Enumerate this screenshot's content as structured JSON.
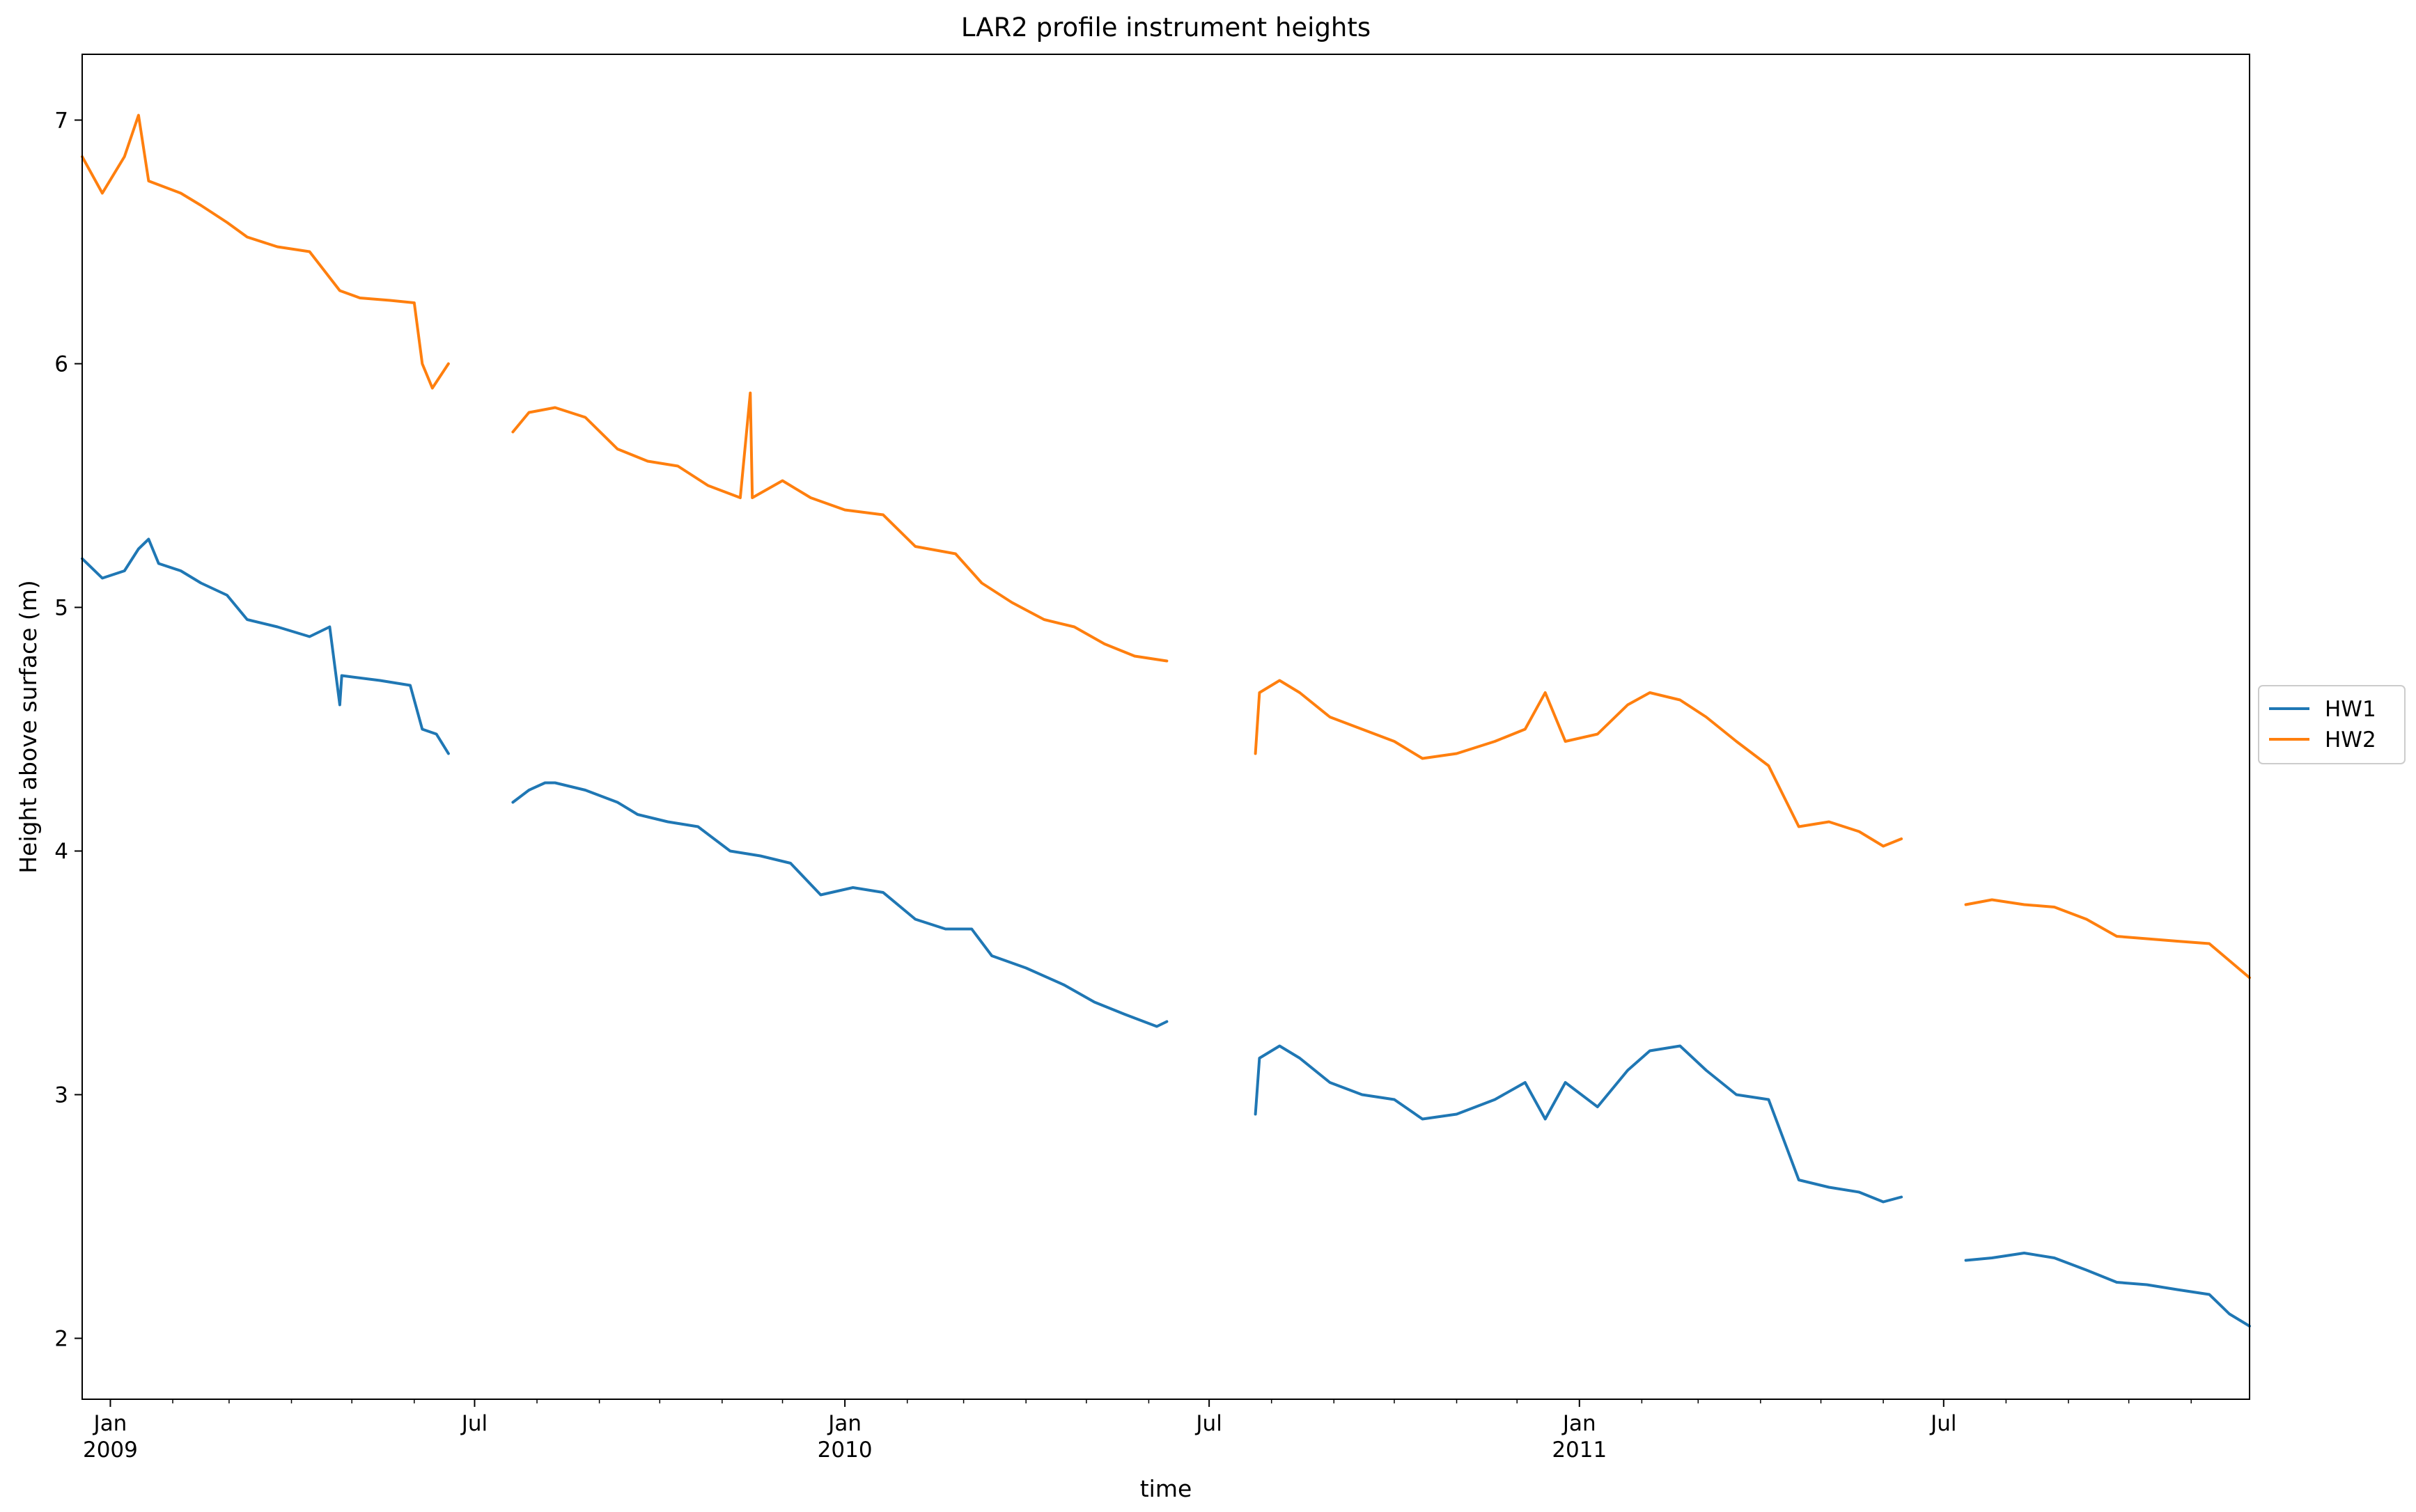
{
  "chart_data": {
    "type": "line",
    "title": "LAR2 profile instrument heights",
    "xlabel": "time",
    "ylabel": "Height above surface (m)",
    "xlim": [
      "2008-12-18",
      "2011-11-30"
    ],
    "ylim": [
      1.75,
      7.27
    ],
    "y_ticks": [
      2,
      3,
      4,
      5,
      6,
      7
    ],
    "x_ticks": [
      {
        "date": "2009-01-01",
        "label": "Jan",
        "sublabel": "2009"
      },
      {
        "date": "2009-07-01",
        "label": "Jul",
        "sublabel": ""
      },
      {
        "date": "2010-01-01",
        "label": "Jan",
        "sublabel": "2010"
      },
      {
        "date": "2010-07-01",
        "label": "Jul",
        "sublabel": ""
      },
      {
        "date": "2011-01-01",
        "label": "Jan",
        "sublabel": "2011"
      },
      {
        "date": "2011-07-01",
        "label": "Jul",
        "sublabel": ""
      }
    ],
    "grid": false,
    "legend_position": "center-right-outside",
    "series": [
      {
        "name": "HW1",
        "color": "#1f77b4",
        "segments": [
          [
            [
              "2008-12-18",
              5.2
            ],
            [
              "2008-12-28",
              5.12
            ],
            [
              "2009-01-08",
              5.15
            ],
            [
              "2009-01-15",
              5.24
            ],
            [
              "2009-01-20",
              5.28
            ],
            [
              "2009-01-25",
              5.18
            ],
            [
              "2009-02-05",
              5.15
            ],
            [
              "2009-02-15",
              5.1
            ],
            [
              "2009-02-28",
              5.05
            ],
            [
              "2009-03-10",
              4.95
            ],
            [
              "2009-03-25",
              4.92
            ],
            [
              "2009-04-10",
              4.88
            ],
            [
              "2009-04-20",
              4.92
            ],
            [
              "2009-04-25",
              4.6
            ],
            [
              "2009-04-26",
              4.72
            ],
            [
              "2009-05-15",
              4.7
            ],
            [
              "2009-05-30",
              4.68
            ],
            [
              "2009-06-05",
              4.5
            ],
            [
              "2009-06-12",
              4.48
            ],
            [
              "2009-06-18",
              4.4
            ]
          ],
          [
            [
              "2009-07-20",
              4.2
            ],
            [
              "2009-07-28",
              4.25
            ],
            [
              "2009-08-05",
              4.28
            ],
            [
              "2009-08-10",
              4.28
            ],
            [
              "2009-08-25",
              4.25
            ],
            [
              "2009-09-10",
              4.2
            ],
            [
              "2009-09-20",
              4.15
            ],
            [
              "2009-10-05",
              4.12
            ],
            [
              "2009-10-20",
              4.1
            ],
            [
              "2009-11-05",
              4.0
            ],
            [
              "2009-11-20",
              3.98
            ],
            [
              "2009-12-05",
              3.95
            ],
            [
              "2009-12-20",
              3.82
            ],
            [
              "2010-01-05",
              3.85
            ],
            [
              "2010-01-20",
              3.83
            ],
            [
              "2010-02-05",
              3.72
            ],
            [
              "2010-02-20",
              3.68
            ],
            [
              "2010-03-05",
              3.68
            ],
            [
              "2010-03-15",
              3.57
            ],
            [
              "2010-04-01",
              3.52
            ],
            [
              "2010-04-20",
              3.45
            ],
            [
              "2010-05-05",
              3.38
            ],
            [
              "2010-05-20",
              3.33
            ],
            [
              "2010-06-05",
              3.28
            ],
            [
              "2010-06-10",
              3.3
            ]
          ],
          [
            [
              "2010-07-24",
              2.92
            ],
            [
              "2010-07-26",
              3.15
            ],
            [
              "2010-08-05",
              3.2
            ],
            [
              "2010-08-15",
              3.15
            ],
            [
              "2010-08-30",
              3.05
            ],
            [
              "2010-09-15",
              3.0
            ],
            [
              "2010-10-01",
              2.98
            ],
            [
              "2010-10-15",
              2.9
            ],
            [
              "2010-11-01",
              2.92
            ],
            [
              "2010-11-20",
              2.98
            ],
            [
              "2010-12-05",
              3.05
            ],
            [
              "2010-12-15",
              2.9
            ],
            [
              "2010-12-25",
              3.05
            ],
            [
              "2011-01-10",
              2.95
            ],
            [
              "2011-01-25",
              3.1
            ],
            [
              "2011-02-05",
              3.18
            ],
            [
              "2011-02-20",
              3.2
            ],
            [
              "2011-03-05",
              3.1
            ],
            [
              "2011-03-20",
              3.0
            ],
            [
              "2011-04-05",
              2.98
            ],
            [
              "2011-04-20",
              2.65
            ],
            [
              "2011-05-05",
              2.62
            ],
            [
              "2011-05-20",
              2.6
            ],
            [
              "2011-06-01",
              2.56
            ],
            [
              "2011-06-10",
              2.58
            ]
          ],
          [
            [
              "2011-07-12",
              2.32
            ],
            [
              "2011-07-25",
              2.33
            ],
            [
              "2011-08-10",
              2.35
            ],
            [
              "2011-08-25",
              2.33
            ],
            [
              "2011-09-10",
              2.28
            ],
            [
              "2011-09-25",
              2.23
            ],
            [
              "2011-10-10",
              2.22
            ],
            [
              "2011-10-25",
              2.2
            ],
            [
              "2011-11-10",
              2.18
            ],
            [
              "2011-11-20",
              2.1
            ],
            [
              "2011-11-30",
              2.05
            ]
          ]
        ]
      },
      {
        "name": "HW2",
        "color": "#ff7f0e",
        "segments": [
          [
            [
              "2008-12-18",
              6.85
            ],
            [
              "2008-12-28",
              6.7
            ],
            [
              "2009-01-08",
              6.85
            ],
            [
              "2009-01-15",
              7.02
            ],
            [
              "2009-01-20",
              6.75
            ],
            [
              "2009-02-05",
              6.7
            ],
            [
              "2009-02-15",
              6.65
            ],
            [
              "2009-02-28",
              6.58
            ],
            [
              "2009-03-10",
              6.52
            ],
            [
              "2009-03-25",
              6.48
            ],
            [
              "2009-04-10",
              6.46
            ],
            [
              "2009-04-25",
              6.3
            ],
            [
              "2009-05-05",
              6.27
            ],
            [
              "2009-05-20",
              6.26
            ],
            [
              "2009-06-01",
              6.25
            ],
            [
              "2009-06-05",
              6.0
            ],
            [
              "2009-06-10",
              5.9
            ],
            [
              "2009-06-18",
              6.0
            ]
          ],
          [
            [
              "2009-07-20",
              5.72
            ],
            [
              "2009-07-28",
              5.8
            ],
            [
              "2009-08-10",
              5.82
            ],
            [
              "2009-08-25",
              5.78
            ],
            [
              "2009-09-10",
              5.65
            ],
            [
              "2009-09-25",
              5.6
            ],
            [
              "2009-10-10",
              5.58
            ],
            [
              "2009-10-25",
              5.5
            ],
            [
              "2009-11-10",
              5.45
            ],
            [
              "2009-11-15",
              5.88
            ],
            [
              "2009-11-16",
              5.45
            ],
            [
              "2009-12-01",
              5.52
            ],
            [
              "2009-12-15",
              5.45
            ],
            [
              "2010-01-01",
              5.4
            ],
            [
              "2010-01-20",
              5.38
            ],
            [
              "2010-02-05",
              5.25
            ],
            [
              "2010-02-25",
              5.22
            ],
            [
              "2010-03-10",
              5.1
            ],
            [
              "2010-03-25",
              5.02
            ],
            [
              "2010-04-10",
              4.95
            ],
            [
              "2010-04-25",
              4.92
            ],
            [
              "2010-05-10",
              4.85
            ],
            [
              "2010-05-25",
              4.8
            ],
            [
              "2010-06-10",
              4.78
            ]
          ],
          [
            [
              "2010-07-24",
              4.4
            ],
            [
              "2010-07-26",
              4.65
            ],
            [
              "2010-08-05",
              4.7
            ],
            [
              "2010-08-15",
              4.65
            ],
            [
              "2010-08-30",
              4.55
            ],
            [
              "2010-09-15",
              4.5
            ],
            [
              "2010-10-01",
              4.45
            ],
            [
              "2010-10-15",
              4.38
            ],
            [
              "2010-11-01",
              4.4
            ],
            [
              "2010-11-20",
              4.45
            ],
            [
              "2010-12-05",
              4.5
            ],
            [
              "2010-12-15",
              4.65
            ],
            [
              "2010-12-25",
              4.45
            ],
            [
              "2011-01-10",
              4.48
            ],
            [
              "2011-01-25",
              4.6
            ],
            [
              "2011-02-05",
              4.65
            ],
            [
              "2011-02-20",
              4.62
            ],
            [
              "2011-03-05",
              4.55
            ],
            [
              "2011-03-20",
              4.45
            ],
            [
              "2011-04-05",
              4.35
            ],
            [
              "2011-04-20",
              4.1
            ],
            [
              "2011-05-05",
              4.12
            ],
            [
              "2011-05-20",
              4.08
            ],
            [
              "2011-06-01",
              4.02
            ],
            [
              "2011-06-10",
              4.05
            ]
          ],
          [
            [
              "2011-07-12",
              3.78
            ],
            [
              "2011-07-25",
              3.8
            ],
            [
              "2011-08-10",
              3.78
            ],
            [
              "2011-08-25",
              3.77
            ],
            [
              "2011-09-10",
              3.72
            ],
            [
              "2011-09-25",
              3.65
            ],
            [
              "2011-10-10",
              3.64
            ],
            [
              "2011-10-25",
              3.63
            ],
            [
              "2011-11-10",
              3.62
            ],
            [
              "2011-11-20",
              3.55
            ],
            [
              "2011-11-30",
              3.48
            ]
          ]
        ]
      }
    ]
  }
}
